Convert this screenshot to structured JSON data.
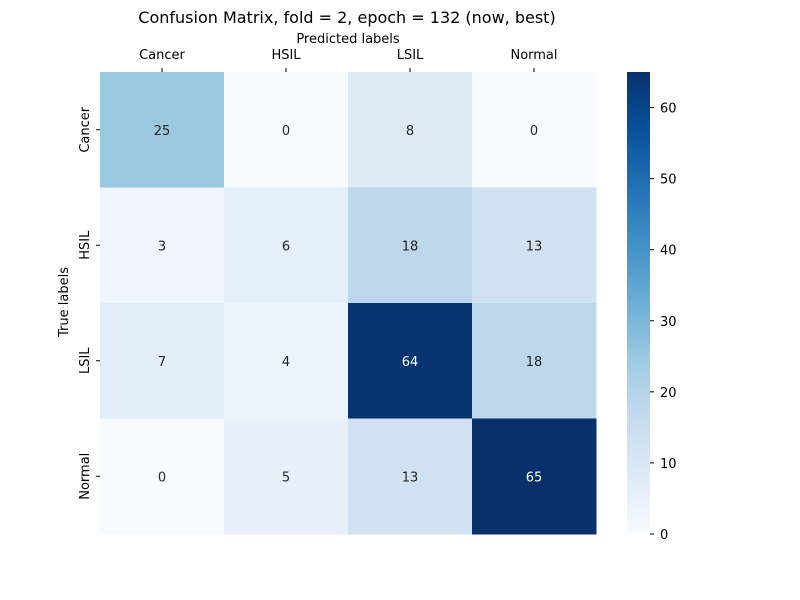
{
  "chart_data": {
    "type": "heatmap",
    "title": "Confusion Matrix, fold = 2, epoch = 132 (now, best)",
    "xlabel": "Predicted labels",
    "ylabel": "True labels",
    "x_categories": [
      "Cancer",
      "HSIL",
      "LSIL",
      "Normal"
    ],
    "y_categories": [
      "Cancer",
      "HSIL",
      "LSIL",
      "Normal"
    ],
    "values": [
      [
        25,
        0,
        8,
        0
      ],
      [
        3,
        6,
        18,
        13
      ],
      [
        7,
        4,
        64,
        18
      ],
      [
        0,
        5,
        13,
        65
      ]
    ],
    "colorbar": {
      "min": 0,
      "max": 65,
      "ticks": [
        0,
        10,
        20,
        30,
        40,
        50,
        60
      ],
      "colormap": "Blues"
    },
    "x_axis_position": "top"
  }
}
